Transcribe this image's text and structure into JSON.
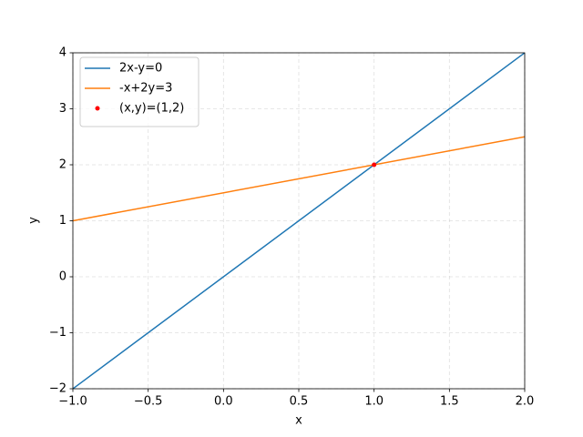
{
  "chart_data": {
    "type": "line",
    "xlabel": "x",
    "ylabel": "y",
    "xlim": [
      -1,
      2
    ],
    "ylim": [
      -2,
      4
    ],
    "xticks": [
      {
        "value": -1,
        "label": "−1.0"
      },
      {
        "value": -0.5,
        "label": "−0.5"
      },
      {
        "value": 0,
        "label": "0.0"
      },
      {
        "value": 0.5,
        "label": "0.5"
      },
      {
        "value": 1,
        "label": "1.0"
      },
      {
        "value": 1.5,
        "label": "1.5"
      },
      {
        "value": 2,
        "label": "2.0"
      }
    ],
    "yticks": [
      {
        "value": -2,
        "label": "−2"
      },
      {
        "value": -1,
        "label": "−1"
      },
      0,
      1,
      2,
      3,
      4
    ],
    "grid": true,
    "legend": "upper left",
    "series": [
      {
        "name": "2x-y=0",
        "color": "#1f77b4",
        "x": [
          -1,
          2
        ],
        "values": [
          -2,
          4
        ]
      },
      {
        "name": "-x+2y=3",
        "color": "#ff7f0e",
        "x": [
          -1,
          2
        ],
        "values": [
          1,
          2.5
        ]
      },
      {
        "name": "(x,y)=(1,2)",
        "color": "#ff0000",
        "marker": "dot",
        "x": [
          1
        ],
        "values": [
          2
        ]
      }
    ]
  }
}
